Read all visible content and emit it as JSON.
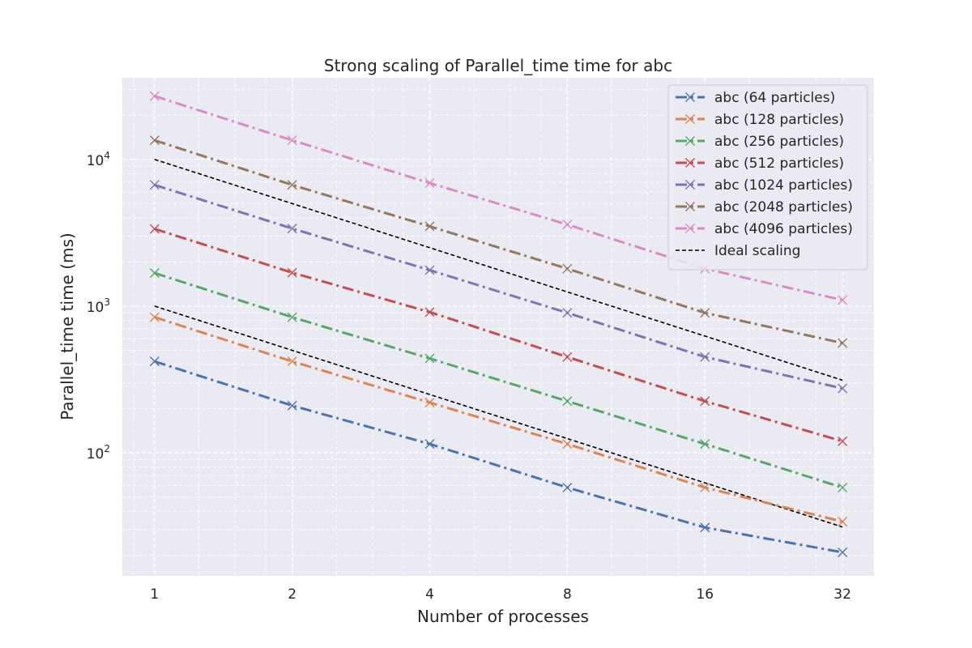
{
  "chart_data": {
    "type": "line",
    "title": "Strong scaling of Parallel_time time for abc",
    "xlabel": "Number of processes",
    "ylabel": "Parallel_time time (ms)",
    "x": [
      1,
      2,
      4,
      8,
      16,
      32
    ],
    "x_tick_labels": [
      "1",
      "2",
      "4",
      "8",
      "16",
      "32"
    ],
    "x_scale": "log2",
    "xlim": [
      0.85,
      37.5
    ],
    "y_scale": "log10",
    "ylim": [
      14.5,
      36000
    ],
    "y_tick_labels": [
      {
        "base": "10",
        "exp": "2",
        "value": 100
      },
      {
        "base": "10",
        "exp": "3",
        "value": 1000
      },
      {
        "base": "10",
        "exp": "4",
        "value": 10000
      }
    ],
    "grid": true,
    "legend_position": "upper right",
    "series": [
      {
        "name": "abc (64 particles)",
        "color": "#4c72b0",
        "marker": "x",
        "linestyle": "dash-dot",
        "values": [
          420,
          210,
          115,
          58,
          31,
          21
        ]
      },
      {
        "name": "abc (128 particles)",
        "color": "#dd8452",
        "marker": "x",
        "linestyle": "dash-dot",
        "values": [
          840,
          420,
          220,
          115,
          58,
          34
        ]
      },
      {
        "name": "abc (256 particles)",
        "color": "#55a868",
        "marker": "x",
        "linestyle": "dash-dot",
        "values": [
          1680,
          840,
          440,
          225,
          115,
          58
        ]
      },
      {
        "name": "abc (512 particles)",
        "color": "#c44e52",
        "marker": "x",
        "linestyle": "dash-dot",
        "values": [
          3360,
          1690,
          910,
          450,
          225,
          120
        ]
      },
      {
        "name": "abc (1024 particles)",
        "color": "#8172b3",
        "marker": "x",
        "linestyle": "dash-dot",
        "values": [
          6700,
          3380,
          1760,
          900,
          450,
          275
        ]
      },
      {
        "name": "abc (2048 particles)",
        "color": "#937860",
        "marker": "x",
        "linestyle": "dash-dot",
        "values": [
          13500,
          6700,
          3500,
          1800,
          900,
          560
        ]
      },
      {
        "name": "abc (4096 particles)",
        "color": "#da8bc3",
        "marker": "x",
        "linestyle": "dash-dot",
        "values": [
          27000,
          13500,
          6900,
          3600,
          1800,
          1100
        ]
      }
    ],
    "ideal_lines": [
      {
        "name": "Ideal scaling",
        "color": "#000000",
        "linestyle": "dashed",
        "values": [
          1000,
          500,
          250,
          125,
          62.5,
          31.25
        ]
      },
      {
        "name": "",
        "color": "#000000",
        "linestyle": "dashed",
        "values": [
          10000,
          5000,
          2500,
          1250,
          625,
          312.5
        ]
      }
    ]
  }
}
